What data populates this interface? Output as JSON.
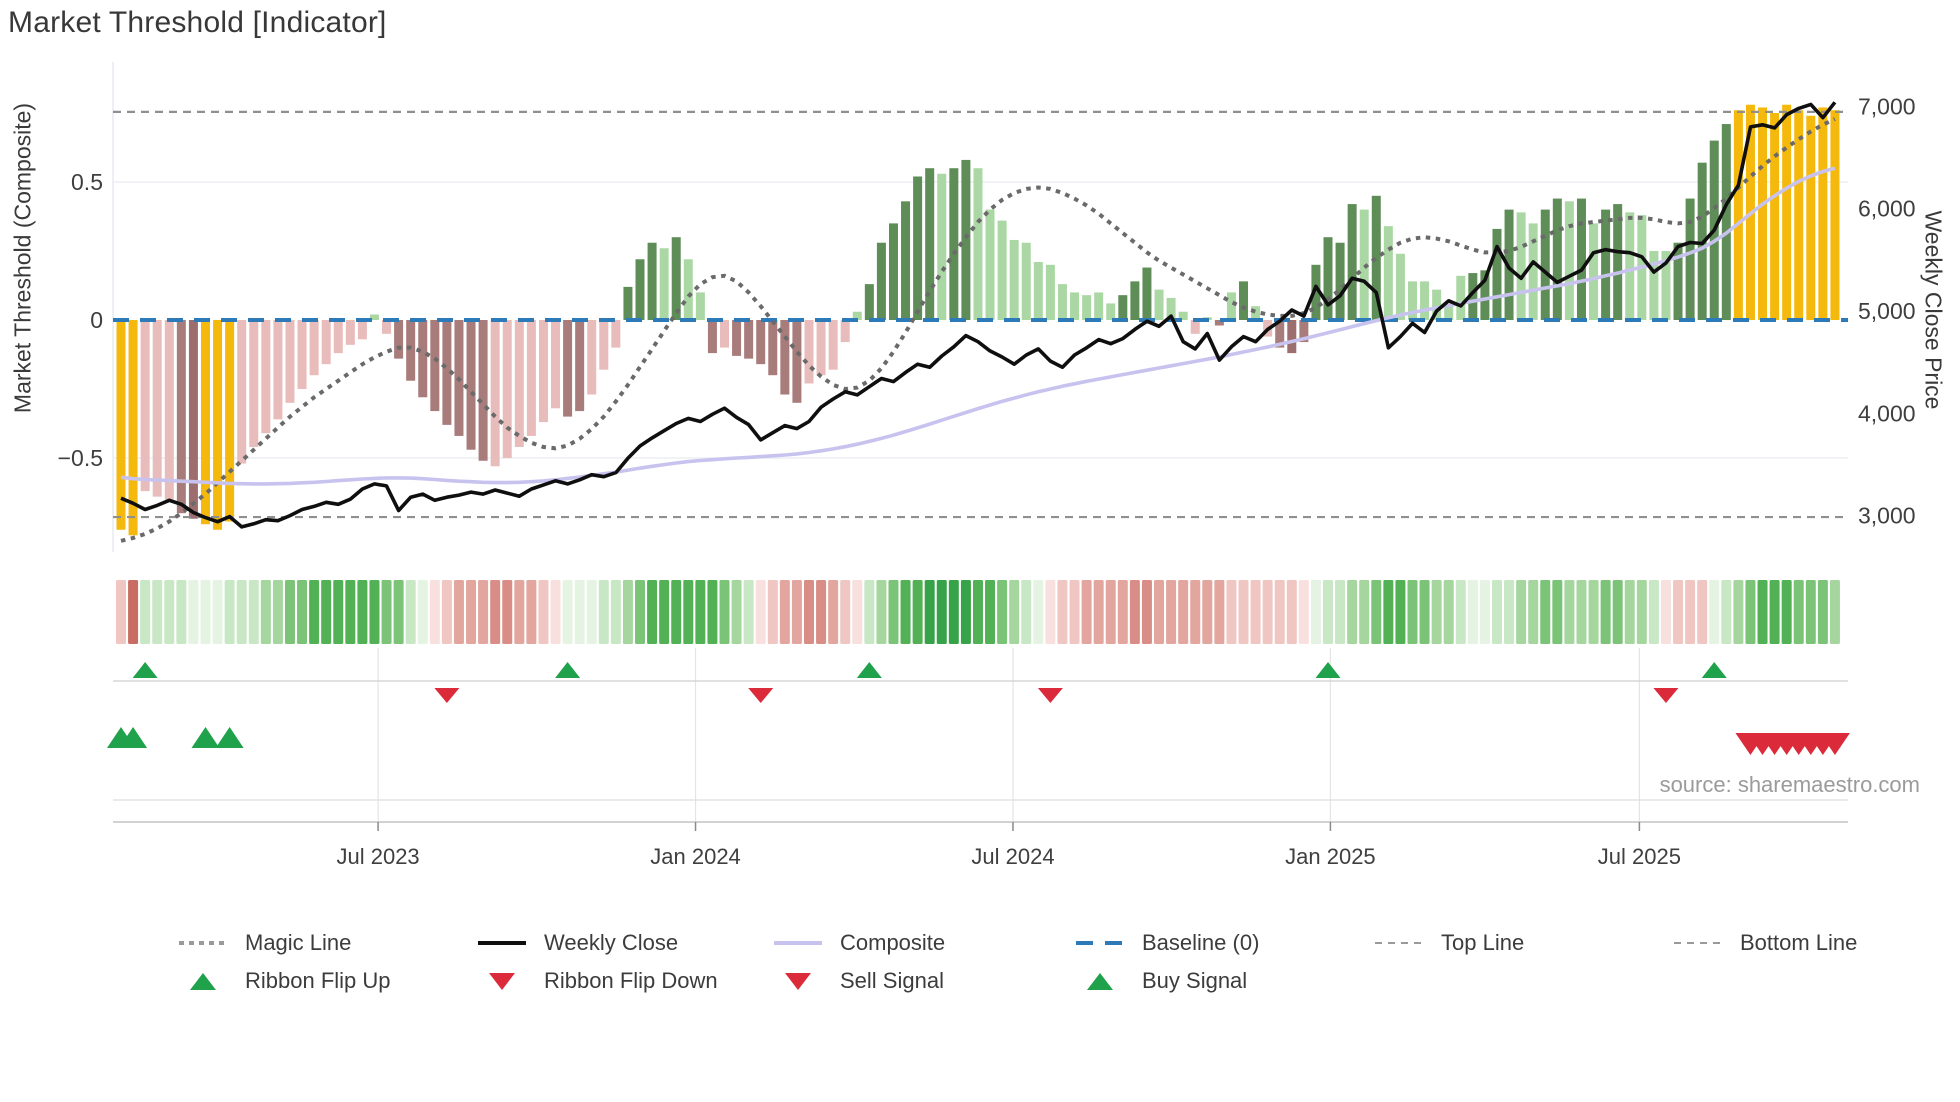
{
  "title": "Market Threshold [Indicator]",
  "source": "source: sharemaestro.com",
  "left_axis": {
    "title": "Market Threshold (Composite)",
    "ticks": [
      {
        "label": "0.5",
        "value": 0.5
      },
      {
        "label": "0",
        "value": 0
      },
      {
        "label": "−0.5",
        "value": -0.5
      }
    ]
  },
  "right_axis": {
    "title": "Weekly Close Price",
    "ticks": [
      {
        "label": "7,000",
        "value": 7000
      },
      {
        "label": "6,000",
        "value": 6000
      },
      {
        "label": "5,000",
        "value": 5000
      },
      {
        "label": "4,000",
        "value": 4000
      },
      {
        "label": "3,000",
        "value": 3000
      }
    ]
  },
  "colors": {
    "accent_blue": "#2d7ab8",
    "signal_green": "#1fa24b",
    "signal_red": "#db2b3b",
    "close_line": "#0f0f0f",
    "composite_line": "#c8c3ee",
    "magic_line": "#6a6a6a",
    "ref_gray": "#8f8f8f",
    "grid": "#eceef4",
    "bar_styles": {
      "g": "#f5b90d",
      "p": "#e8bcba",
      "m": "#a87c7a",
      "M": "#9c6e6d",
      "d": "#5e8d57",
      "l": "#abd7a5"
    },
    "ribbon_palette": {
      "P1": "#f7e0de",
      "P2": "#efc6c2",
      "P3": "#e2a69f",
      "P4": "#d88e87",
      "R": "#c96c63",
      "G1": "#e4f3e2",
      "G2": "#c8e7c4",
      "G3": "#a4d69e",
      "G4": "#7bc477",
      "G5": "#52b155",
      "G6": "#37a348"
    }
  },
  "legend": {
    "rows": [
      [
        {
          "label": "Magic Line",
          "swatch": "dots"
        },
        {
          "label": "Weekly Close",
          "swatch": "black-line"
        },
        {
          "label": "Composite",
          "swatch": "lavender-line"
        },
        {
          "label": "Baseline (0)",
          "swatch": "blue-dash"
        },
        {
          "label": "Top Line",
          "swatch": "small-dash"
        },
        {
          "label": "Bottom Line",
          "swatch": "small-dash"
        }
      ],
      [
        {
          "label": "Ribbon Flip Up",
          "swatch": "tri-up"
        },
        {
          "label": "Ribbon Flip Down",
          "swatch": "tri-down"
        },
        {
          "label": "Sell Signal",
          "swatch": "tri-down"
        },
        {
          "label": "Buy Signal",
          "swatch": "tri-up"
        }
      ]
    ]
  },
  "chart_data": {
    "type": "combo-bar-line",
    "weeks": 143,
    "x_ticks": [
      {
        "label": "Jul 2023",
        "week": 21.3
      },
      {
        "label": "Jan 2024",
        "week": 47.6
      },
      {
        "label": "Jul 2024",
        "week": 73.9
      },
      {
        "label": "Jan 2025",
        "week": 100.2
      },
      {
        "label": "Jul 2025",
        "week": 125.8
      }
    ],
    "left_ylim": [
      -0.83,
      0.93
    ],
    "right_ylim": [
      2660,
      7430
    ],
    "reference_lines": {
      "baseline": 0,
      "top_line": 0.754,
      "bottom_line": -0.714
    },
    "threshold_bars": {
      "values": [
        -0.76,
        -0.78,
        -0.62,
        -0.64,
        -0.65,
        -0.7,
        -0.72,
        -0.74,
        -0.76,
        -0.73,
        -0.52,
        -0.46,
        -0.41,
        -0.36,
        -0.3,
        -0.25,
        -0.2,
        -0.16,
        -0.12,
        -0.09,
        -0.07,
        0.02,
        -0.05,
        -0.14,
        -0.22,
        -0.28,
        -0.33,
        -0.38,
        -0.42,
        -0.47,
        -0.51,
        -0.53,
        -0.5,
        -0.46,
        -0.42,
        -0.37,
        -0.32,
        -0.35,
        -0.33,
        -0.27,
        -0.18,
        -0.1,
        0.12,
        0.22,
        0.28,
        0.26,
        0.3,
        0.22,
        0.1,
        -0.12,
        -0.1,
        -0.13,
        -0.14,
        -0.16,
        -0.2,
        -0.27,
        -0.3,
        -0.23,
        -0.2,
        -0.18,
        -0.08,
        0.03,
        0.13,
        0.28,
        0.35,
        0.43,
        0.52,
        0.55,
        0.53,
        0.55,
        0.58,
        0.55,
        0.4,
        0.36,
        0.29,
        0.28,
        0.21,
        0.2,
        0.13,
        0.1,
        0.09,
        0.1,
        0.06,
        0.09,
        0.14,
        0.19,
        0.11,
        0.08,
        0.03,
        -0.05,
        0.01,
        -0.02,
        0.1,
        0.14,
        0.05,
        -0.06,
        -0.1,
        -0.12,
        -0.08,
        0.2,
        0.3,
        0.28,
        0.42,
        0.4,
        0.45,
        0.34,
        0.24,
        0.14,
        0.14,
        0.11,
        0.05,
        0.16,
        0.17,
        0.18,
        0.33,
        0.4,
        0.39,
        0.35,
        0.4,
        0.44,
        0.43,
        0.44,
        0.35,
        0.4,
        0.42,
        0.39,
        0.38,
        0.25,
        0.25,
        0.28,
        0.44,
        0.57,
        0.65,
        0.71,
        0.76,
        0.78,
        0.77,
        0.75,
        0.78,
        0.76,
        0.74,
        0.77,
        0.76
      ],
      "style_rle": "g2 p3 m1 M1 g3 p11 l1 p1 m8 p6 m2 p3 d3 l1 d1 l2 m1 p1 m6 p4 l1 d6 l1 d2 l12 d3 l3 p1 l1 m1 l1 d1 l1 p1 m1 M1 m1 d4 l1 d1 l7 d4 l2 d2 l1 d1 l1 d2 l4 d5 g9"
    },
    "weekly_close": [
      3170,
      3120,
      3060,
      3100,
      3150,
      3110,
      3030,
      2980,
      2940,
      2990,
      2890,
      2920,
      2960,
      2950,
      3000,
      3060,
      3090,
      3130,
      3110,
      3160,
      3260,
      3310,
      3290,
      3050,
      3180,
      3210,
      3150,
      3180,
      3200,
      3230,
      3210,
      3250,
      3220,
      3190,
      3260,
      3300,
      3340,
      3310,
      3350,
      3400,
      3380,
      3420,
      3560,
      3680,
      3760,
      3830,
      3900,
      3950,
      3920,
      3990,
      4050,
      3960,
      3890,
      3740,
      3810,
      3880,
      3850,
      3920,
      4060,
      4140,
      4210,
      4180,
      4260,
      4340,
      4310,
      4400,
      4480,
      4450,
      4560,
      4650,
      4760,
      4700,
      4610,
      4550,
      4480,
      4570,
      4630,
      4510,
      4450,
      4570,
      4640,
      4720,
      4680,
      4730,
      4820,
      4900,
      4850,
      4950,
      4700,
      4630,
      4780,
      4520,
      4650,
      4750,
      4700,
      4820,
      4900,
      5010,
      4950,
      5240,
      5060,
      5150,
      5320,
      5290,
      5180,
      4640,
      4750,
      4880,
      4790,
      5000,
      5100,
      5050,
      5180,
      5300,
      5630,
      5420,
      5320,
      5480,
      5380,
      5280,
      5340,
      5400,
      5570,
      5600,
      5580,
      5570,
      5530,
      5380,
      5470,
      5630,
      5670,
      5660,
      5790,
      6040,
      6230,
      6800,
      6820,
      6790,
      6920,
      6980,
      7020,
      6890,
      7040
    ],
    "composite": [
      -0.57,
      -0.575,
      -0.578,
      -0.58,
      -0.582,
      -0.584,
      -0.586,
      -0.588,
      -0.59,
      -0.592,
      -0.593,
      -0.594,
      -0.594,
      -0.593,
      -0.592,
      -0.59,
      -0.588,
      -0.585,
      -0.582,
      -0.579,
      -0.576,
      -0.574,
      -0.572,
      -0.572,
      -0.573,
      -0.575,
      -0.578,
      -0.581,
      -0.584,
      -0.586,
      -0.588,
      -0.589,
      -0.589,
      -0.588,
      -0.586,
      -0.583,
      -0.579,
      -0.574,
      -0.569,
      -0.563,
      -0.557,
      -0.551,
      -0.544,
      -0.537,
      -0.53,
      -0.524,
      -0.518,
      -0.513,
      -0.509,
      -0.506,
      -0.503,
      -0.5,
      -0.498,
      -0.495,
      -0.492,
      -0.489,
      -0.485,
      -0.48,
      -0.474,
      -0.467,
      -0.459,
      -0.45,
      -0.44,
      -0.429,
      -0.417,
      -0.404,
      -0.391,
      -0.377,
      -0.363,
      -0.349,
      -0.335,
      -0.321,
      -0.308,
      -0.295,
      -0.283,
      -0.271,
      -0.26,
      -0.25,
      -0.24,
      -0.231,
      -0.222,
      -0.214,
      -0.206,
      -0.198,
      -0.19,
      -0.182,
      -0.174,
      -0.166,
      -0.158,
      -0.15,
      -0.142,
      -0.134,
      -0.125,
      -0.116,
      -0.107,
      -0.098,
      -0.088,
      -0.078,
      -0.068,
      -0.057,
      -0.046,
      -0.035,
      -0.024,
      -0.013,
      -0.002,
      0.008,
      0.018,
      0.027,
      0.036,
      0.044,
      0.052,
      0.06,
      0.068,
      0.076,
      0.084,
      0.092,
      0.1,
      0.108,
      0.116,
      0.124,
      0.132,
      0.141,
      0.15,
      0.16,
      0.17,
      0.181,
      0.192,
      0.203,
      0.215,
      0.228,
      0.243,
      0.26,
      0.285,
      0.315,
      0.35,
      0.385,
      0.42,
      0.45,
      0.478,
      0.502,
      0.522,
      0.538,
      0.55
    ],
    "magic_line": [
      -0.8,
      -0.79,
      -0.775,
      -0.755,
      -0.73,
      -0.7,
      -0.665,
      -0.63,
      -0.59,
      -0.55,
      -0.51,
      -0.47,
      -0.43,
      -0.39,
      -0.35,
      -0.315,
      -0.28,
      -0.25,
      -0.22,
      -0.19,
      -0.16,
      -0.135,
      -0.115,
      -0.1,
      -0.1,
      -0.115,
      -0.14,
      -0.175,
      -0.215,
      -0.26,
      -0.305,
      -0.35,
      -0.39,
      -0.42,
      -0.445,
      -0.46,
      -0.465,
      -0.455,
      -0.43,
      -0.395,
      -0.35,
      -0.295,
      -0.235,
      -0.17,
      -0.105,
      -0.04,
      0.025,
      0.085,
      0.13,
      0.155,
      0.16,
      0.14,
      0.1,
      0.05,
      -0.005,
      -0.06,
      -0.115,
      -0.165,
      -0.205,
      -0.235,
      -0.25,
      -0.245,
      -0.22,
      -0.175,
      -0.115,
      -0.045,
      0.03,
      0.105,
      0.175,
      0.24,
      0.3,
      0.355,
      0.4,
      0.435,
      0.46,
      0.475,
      0.48,
      0.475,
      0.46,
      0.44,
      0.415,
      0.385,
      0.35,
      0.315,
      0.28,
      0.245,
      0.215,
      0.19,
      0.165,
      0.14,
      0.115,
      0.09,
      0.065,
      0.045,
      0.03,
      0.02,
      0.015,
      0.015,
      0.025,
      0.045,
      0.075,
      0.11,
      0.15,
      0.19,
      0.225,
      0.255,
      0.28,
      0.295,
      0.3,
      0.295,
      0.285,
      0.27,
      0.255,
      0.245,
      0.245,
      0.25,
      0.265,
      0.285,
      0.305,
      0.325,
      0.34,
      0.35,
      0.355,
      0.36,
      0.365,
      0.37,
      0.37,
      0.365,
      0.355,
      0.35,
      0.355,
      0.375,
      0.405,
      0.44,
      0.48,
      0.52,
      0.558,
      0.593,
      0.625,
      0.655,
      0.683,
      0.708,
      0.728
    ],
    "ribbon_rle": "P2:1 R:1 G2:4 G1:3 G2:3 G3:2 G4:2 G5:6 G4:2 G2:1 G1:1 P1:1 P2:1 P3:3 P4:2 P3:2 P2:1 P1:1 G1:3 G2:2 G3:1 G4:1 G5:6 G4:1 G3:1 G2:1 P1:1 P2:1 P3:2 P4:2 P3:1 P2:1 P1:1 G2:1 G3:1 G4:1 G5:2 G6:4 G5:2 G4:1 G3:1 G2:1 G1:1 P1:1 P2:2 P3:4 P4:2 P3:6 P2:6 P1:1 G1:1 G2:2 G3:2 G4:1 G5:2 G4:2 G3:2 G2:1 G1:2 G2:2 G3:2 G4:2 G3:3 G4:2 G3:2 G2:1 P1:1 P2:3 G1:1 G2:1 G3:1 G4:1 G5:3 G4:3 G3:1",
    "signals": {
      "ribbon_flip_up_weeks": [
        2,
        37,
        62,
        100,
        132
      ],
      "ribbon_flip_down_weeks": [
        27,
        53,
        77,
        128
      ],
      "buy_signal_weeks": [
        0,
        1,
        7,
        9
      ],
      "sell_signal_weeks": [
        135,
        136,
        137,
        138,
        139,
        140,
        141,
        142
      ]
    }
  }
}
